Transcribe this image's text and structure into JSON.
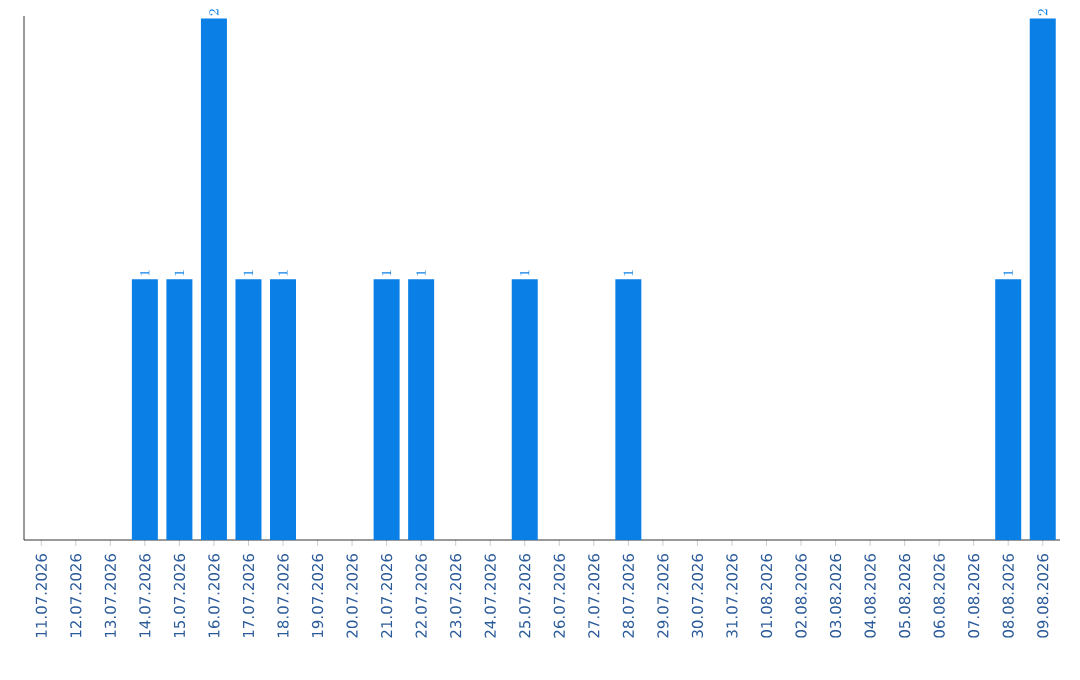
{
  "chart_data": {
    "type": "bar",
    "categories": [
      "11.07.2026",
      "12.07.2026",
      "13.07.2026",
      "14.07.2026",
      "15.07.2026",
      "16.07.2026",
      "17.07.2026",
      "18.07.2026",
      "19.07.2026",
      "20.07.2026",
      "21.07.2026",
      "22.07.2026",
      "23.07.2026",
      "24.07.2026",
      "25.07.2026",
      "26.07.2026",
      "27.07.2026",
      "28.07.2026",
      "29.07.2026",
      "30.07.2026",
      "31.07.2026",
      "01.08.2026",
      "02.08.2026",
      "03.08.2026",
      "04.08.2026",
      "05.08.2026",
      "06.08.2026",
      "07.08.2026",
      "08.08.2026",
      "09.08.2026"
    ],
    "values": [
      null,
      null,
      null,
      1,
      1,
      2,
      1,
      1,
      null,
      null,
      1,
      1,
      null,
      null,
      1,
      null,
      null,
      1,
      null,
      null,
      null,
      null,
      null,
      null,
      null,
      null,
      null,
      null,
      1,
      2
    ],
    "color": "#0a7fe6",
    "ylim": [
      0,
      2
    ],
    "data_labels": true,
    "tick_labels": "x"
  }
}
